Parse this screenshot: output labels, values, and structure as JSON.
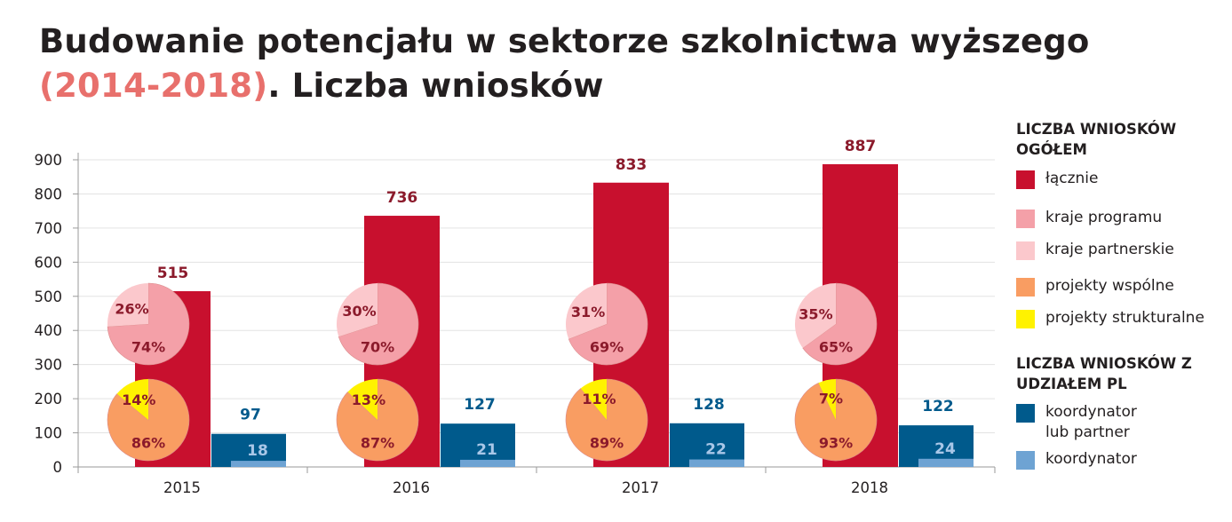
{
  "title": {
    "line1": "Budowanie potencjału w sektorze szkolnictwa wyższego",
    "accent": "(2014-2018)",
    "rest": ". Liczba wniosków"
  },
  "colors": {
    "total": "#c8102e",
    "program": "#f4a0a8",
    "partner": "#fbc8cc",
    "joint": "#f99d62",
    "structural": "#fff200",
    "pl_any": "#005a8c",
    "pl_coordinator": "#6ea3d3",
    "total_label": "#8b1a2b",
    "pl_label": "#005a8c"
  },
  "legend": {
    "heading1": "LICZBA WNIOSKÓW OGÓŁEM",
    "items1": [
      {
        "label": "łącznie",
        "color": "#c8102e"
      },
      {
        "label": "kraje programu",
        "color": "#f4a0a8"
      },
      {
        "label": "kraje partnerskie",
        "color": "#fbc8cc"
      },
      {
        "label": "projekty wspólne",
        "color": "#f99d62"
      },
      {
        "label": "projekty strukturalne",
        "color": "#fff200"
      }
    ],
    "heading2": "LICZBA WNIOSKÓW Z UDZIAŁEM PL",
    "items2": [
      {
        "label": "koordynator\nlub partner",
        "color": "#005a8c"
      },
      {
        "label": "koordynator",
        "color": "#6ea3d3"
      }
    ]
  },
  "chart_data": {
    "type": "bar",
    "categories": [
      "2015",
      "2016",
      "2017",
      "2018"
    ],
    "ylim": [
      0,
      900
    ],
    "yticks": [
      0,
      100,
      200,
      300,
      400,
      500,
      600,
      700,
      800,
      900
    ],
    "grid": true,
    "legend_position": "right",
    "series": [
      {
        "name": "łącznie",
        "values": [
          515,
          736,
          833,
          887
        ]
      },
      {
        "name": "koordynator lub partner",
        "values": [
          97,
          127,
          128,
          122
        ]
      },
      {
        "name": "koordynator",
        "values": [
          18,
          21,
          22,
          24
        ]
      }
    ],
    "pies": [
      {
        "kind": "countries",
        "slices": [
          {
            "name": "kraje programu",
            "values": [
              74,
              70,
              69,
              65
            ]
          },
          {
            "name": "kraje partnerskie",
            "values": [
              26,
              30,
              31,
              35
            ]
          }
        ]
      },
      {
        "kind": "projects",
        "slices": [
          {
            "name": "projekty wspólne",
            "values": [
              86,
              87,
              89,
              93
            ]
          },
          {
            "name": "projekty strukturalne",
            "values": [
              14,
              13,
              11,
              7
            ]
          }
        ]
      }
    ]
  }
}
